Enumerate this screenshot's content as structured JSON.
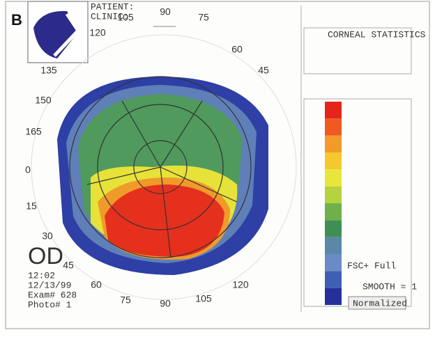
{
  "panel_label": "B",
  "header": {
    "patient": "PATIENT:",
    "clinic": "CLINIC:"
  },
  "axis_labels": [
    "90",
    "105",
    "75",
    "120",
    "60",
    "135",
    "45",
    "150",
    "165",
    "0",
    "15",
    "30",
    "45",
    "60",
    "75",
    "90",
    "105",
    "120"
  ],
  "exam_info": {
    "eye": "OD",
    "time": "12:02",
    "date": "12/13/99",
    "exam": "Exam# 628",
    "photo": "Photo# 1"
  },
  "stats_title": "CORNEAL STATISTICS",
  "scale_mode": "FSC+ Full",
  "smooth": "SMOOTH = 1",
  "button": "Normalized"
}
